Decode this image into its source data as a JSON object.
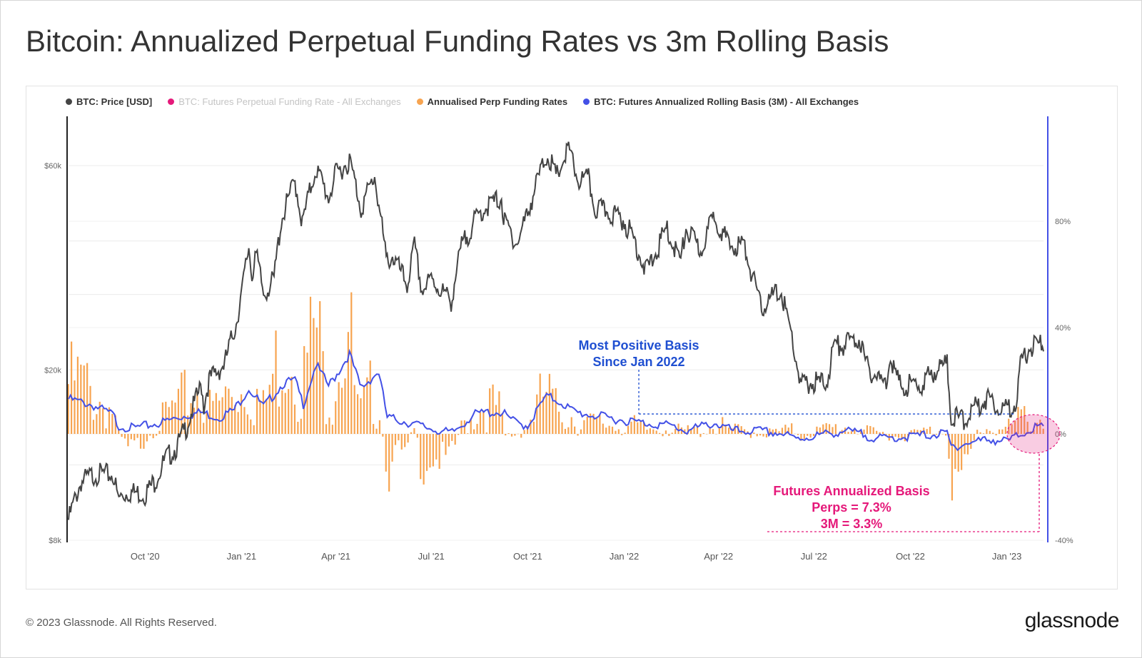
{
  "header": {
    "title": "Bitcoin: Annualized Perpetual Funding Rates vs 3m Rolling Basis"
  },
  "legend": [
    {
      "label": "BTC: Price [USD]",
      "color": "#444444",
      "muted": false
    },
    {
      "label": "BTC: Futures Perpetual Funding Rate - All Exchanges",
      "color": "#e5197a",
      "muted": true
    },
    {
      "label": "Annualised Perp Funding Rates",
      "color": "#f7a450",
      "muted": false
    },
    {
      "label": "BTC: Futures Annualized Rolling Basis (3M) - All Exchanges",
      "color": "#4350e6",
      "muted": false
    }
  ],
  "footer": {
    "copyright": "© 2023 Glassnode. All Rights Reserved.",
    "logo": "glassnode"
  },
  "chart_data": {
    "type": "line",
    "x_ticks": [
      "Oct '20",
      "Jan '21",
      "Apr '21",
      "Jul '21",
      "Oct '21",
      "Jan '22",
      "Apr '22",
      "Jul '22",
      "Oct '22",
      "Jan '23"
    ],
    "y_left": {
      "scale": "log",
      "ticks": [
        "$8k",
        "$20k",
        "$60k"
      ],
      "tick_values": [
        8000,
        20000,
        60000
      ]
    },
    "y_right": {
      "ticks": [
        "80%",
        "40%",
        "0%",
        "-40%"
      ],
      "tick_values": [
        80,
        40,
        0,
        -40
      ],
      "range": [
        -40,
        115
      ]
    },
    "colors": {
      "price": "#444444",
      "funding": "#f7a450",
      "basis": "#4350e6",
      "annot_blue": "#1f4fd1",
      "annot_pink": "#e5197a"
    },
    "price": [
      [
        "2020-07-20",
        9200
      ],
      [
        "2020-08-01",
        11300
      ],
      [
        "2020-08-15",
        11800
      ],
      [
        "2020-09-01",
        11700
      ],
      [
        "2020-09-05",
        10300
      ],
      [
        "2020-09-15",
        10700
      ],
      [
        "2020-10-01",
        10600
      ],
      [
        "2020-10-10",
        11300
      ],
      [
        "2020-10-21",
        12800
      ],
      [
        "2020-11-01",
        13700
      ],
      [
        "2020-11-10",
        15300
      ],
      [
        "2020-11-24",
        19000
      ],
      [
        "2020-11-26",
        17000
      ],
      [
        "2020-12-01",
        19500
      ],
      [
        "2020-12-16",
        21300
      ],
      [
        "2020-12-27",
        26500
      ],
      [
        "2021-01-02",
        32000
      ],
      [
        "2021-01-08",
        40000
      ],
      [
        "2021-01-11",
        34000
      ],
      [
        "2021-01-14",
        39000
      ],
      [
        "2021-01-22",
        31000
      ],
      [
        "2021-02-01",
        33500
      ],
      [
        "2021-02-08",
        46000
      ],
      [
        "2021-02-21",
        57000
      ],
      [
        "2021-02-28",
        45000
      ],
      [
        "2021-03-13",
        61000
      ],
      [
        "2021-03-25",
        52000
      ],
      [
        "2021-04-01",
        59000
      ],
      [
        "2021-04-14",
        63500
      ],
      [
        "2021-04-25",
        49000
      ],
      [
        "2021-05-08",
        58500
      ],
      [
        "2021-05-12",
        50000
      ],
      [
        "2021-05-19",
        37000
      ],
      [
        "2021-05-25",
        38000
      ],
      [
        "2021-06-08",
        32500
      ],
      [
        "2021-06-15",
        40000
      ],
      [
        "2021-06-22",
        31500
      ],
      [
        "2021-07-01",
        33500
      ],
      [
        "2021-07-20",
        29800
      ],
      [
        "2021-07-30",
        40000
      ],
      [
        "2021-08-14",
        47000
      ],
      [
        "2021-08-22",
        49500
      ],
      [
        "2021-09-06",
        52000
      ],
      [
        "2021-09-08",
        46000
      ],
      [
        "2021-09-21",
        40500
      ],
      [
        "2021-10-01",
        48000
      ],
      [
        "2021-10-15",
        61500
      ],
      [
        "2021-10-20",
        66000
      ],
      [
        "2021-10-28",
        58000
      ],
      [
        "2021-11-09",
        67500
      ],
      [
        "2021-11-18",
        57000
      ],
      [
        "2021-11-28",
        57500
      ],
      [
        "2021-12-04",
        49000
      ],
      [
        "2021-12-15",
        48500
      ],
      [
        "2021-12-31",
        46300
      ],
      [
        "2022-01-10",
        41800
      ],
      [
        "2022-01-22",
        35000
      ],
      [
        "2022-01-31",
        38500
      ],
      [
        "2022-02-10",
        44000
      ],
      [
        "2022-02-24",
        37000
      ],
      [
        "2022-03-01",
        44000
      ],
      [
        "2022-03-15",
        39000
      ],
      [
        "2022-03-28",
        47500
      ],
      [
        "2022-04-11",
        40000
      ],
      [
        "2022-04-25",
        40500
      ],
      [
        "2022-05-09",
        30000
      ],
      [
        "2022-05-12",
        28800
      ],
      [
        "2022-05-30",
        31700
      ],
      [
        "2022-06-13",
        22500
      ],
      [
        "2022-06-18",
        19000
      ],
      [
        "2022-07-01",
        19300
      ],
      [
        "2022-07-13",
        19200
      ],
      [
        "2022-07-20",
        23400
      ],
      [
        "2022-07-30",
        23700
      ],
      [
        "2022-08-14",
        24400
      ],
      [
        "2022-08-20",
        21000
      ],
      [
        "2022-09-07",
        19000
      ],
      [
        "2022-09-12",
        22400
      ],
      [
        "2022-09-20",
        19000
      ],
      [
        "2022-10-11",
        19000
      ],
      [
        "2022-10-26",
        20800
      ],
      [
        "2022-11-05",
        21300
      ],
      [
        "2022-11-09",
        16000
      ],
      [
        "2022-11-21",
        15800
      ],
      [
        "2022-12-05",
        17100
      ],
      [
        "2022-12-14",
        17800
      ],
      [
        "2022-12-30",
        16600
      ],
      [
        "2023-01-10",
        17400
      ],
      [
        "2023-01-14",
        20900
      ],
      [
        "2023-01-21",
        23000
      ],
      [
        "2023-02-01",
        23700
      ],
      [
        "2023-02-05",
        23500
      ]
    ],
    "basis": [
      [
        "2020-07-20",
        14
      ],
      [
        "2020-08-10",
        12
      ],
      [
        "2020-09-01",
        8
      ],
      [
        "2020-09-05",
        4
      ],
      [
        "2020-09-20",
        3
      ],
      [
        "2020-10-15",
        5
      ],
      [
        "2020-11-10",
        8
      ],
      [
        "2020-11-24",
        9
      ],
      [
        "2020-12-10",
        7
      ],
      [
        "2020-12-25",
        10
      ],
      [
        "2021-01-08",
        18
      ],
      [
        "2021-01-22",
        11
      ],
      [
        "2021-02-10",
        20
      ],
      [
        "2021-02-21",
        21
      ],
      [
        "2021-03-01",
        12
      ],
      [
        "2021-03-13",
        27
      ],
      [
        "2021-03-25",
        19
      ],
      [
        "2021-04-03",
        24
      ],
      [
        "2021-04-14",
        31
      ],
      [
        "2021-04-25",
        18
      ],
      [
        "2021-05-08",
        23
      ],
      [
        "2021-05-12",
        24
      ],
      [
        "2021-05-20",
        7
      ],
      [
        "2021-06-01",
        6
      ],
      [
        "2021-06-20",
        4
      ],
      [
        "2021-07-20",
        1
      ],
      [
        "2021-08-10",
        8
      ],
      [
        "2021-08-22",
        9
      ],
      [
        "2021-09-06",
        9
      ],
      [
        "2021-09-20",
        5
      ],
      [
        "2021-10-01",
        4
      ],
      [
        "2021-10-15",
        13
      ],
      [
        "2021-10-20",
        15
      ],
      [
        "2021-11-01",
        13
      ],
      [
        "2021-11-15",
        9
      ],
      [
        "2021-12-01",
        8
      ],
      [
        "2021-12-15",
        7
      ],
      [
        "2022-01-01",
        6
      ],
      [
        "2022-01-20",
        5
      ],
      [
        "2022-02-15",
        4
      ],
      [
        "2022-03-01",
        2
      ],
      [
        "2022-03-28",
        5
      ],
      [
        "2022-04-15",
        2
      ],
      [
        "2022-05-09",
        2
      ],
      [
        "2022-06-01",
        1
      ],
      [
        "2022-06-13",
        -1
      ],
      [
        "2022-07-01",
        0
      ],
      [
        "2022-07-30",
        2
      ],
      [
        "2022-08-14",
        1
      ],
      [
        "2022-09-01",
        -1
      ],
      [
        "2022-10-01",
        0
      ],
      [
        "2022-11-05",
        1
      ],
      [
        "2022-11-09",
        -4
      ],
      [
        "2022-11-20",
        -3
      ],
      [
        "2022-12-15",
        -1
      ],
      [
        "2023-01-01",
        -2
      ],
      [
        "2023-01-15",
        1
      ],
      [
        "2023-01-25",
        3
      ],
      [
        "2023-02-05",
        3.3
      ]
    ],
    "funding": [
      [
        "2020-07-20",
        25
      ],
      [
        "2020-08-01",
        26
      ],
      [
        "2020-08-15",
        18
      ],
      [
        "2020-09-01",
        12
      ],
      [
        "2020-09-05",
        0
      ],
      [
        "2020-09-15",
        -5
      ],
      [
        "2020-10-01",
        -2
      ],
      [
        "2020-10-10",
        3
      ],
      [
        "2020-10-21",
        9
      ],
      [
        "2020-11-01",
        14
      ],
      [
        "2020-11-10",
        18
      ],
      [
        "2020-11-24",
        24
      ],
      [
        "2020-12-01",
        12
      ],
      [
        "2020-12-10",
        14
      ],
      [
        "2020-12-27",
        25
      ],
      [
        "2021-01-02",
        22
      ],
      [
        "2021-01-08",
        33
      ],
      [
        "2021-01-11",
        14
      ],
      [
        "2021-01-14",
        22
      ],
      [
        "2021-01-22",
        12
      ],
      [
        "2021-02-01",
        30
      ],
      [
        "2021-02-10",
        48
      ],
      [
        "2021-02-21",
        50
      ],
      [
        "2021-02-28",
        24
      ],
      [
        "2021-03-13",
        55
      ],
      [
        "2021-03-20",
        30
      ],
      [
        "2021-03-28",
        22
      ],
      [
        "2021-04-05",
        50
      ],
      [
        "2021-04-14",
        55
      ],
      [
        "2021-04-20",
        15
      ],
      [
        "2021-04-25",
        10
      ],
      [
        "2021-05-08",
        24
      ],
      [
        "2021-05-12",
        18
      ],
      [
        "2021-05-20",
        -15
      ],
      [
        "2021-05-25",
        -5
      ],
      [
        "2021-06-08",
        -7
      ],
      [
        "2021-06-15",
        2
      ],
      [
        "2021-06-22",
        -10
      ],
      [
        "2021-07-01",
        -7
      ],
      [
        "2021-07-20",
        -8
      ],
      [
        "2021-07-30",
        3
      ],
      [
        "2021-08-14",
        12
      ],
      [
        "2021-08-22",
        16
      ],
      [
        "2021-09-06",
        11
      ],
      [
        "2021-09-08",
        -1
      ],
      [
        "2021-09-21",
        0
      ],
      [
        "2021-10-01",
        5
      ],
      [
        "2021-10-15",
        18
      ],
      [
        "2021-10-20",
        20
      ],
      [
        "2021-10-28",
        12
      ],
      [
        "2021-11-09",
        11
      ],
      [
        "2021-11-18",
        6
      ],
      [
        "2021-12-04",
        5
      ],
      [
        "2021-12-20",
        5
      ],
      [
        "2022-01-10",
        4
      ],
      [
        "2022-01-22",
        2
      ],
      [
        "2022-02-10",
        4
      ],
      [
        "2022-02-24",
        1
      ],
      [
        "2022-03-15",
        2
      ],
      [
        "2022-03-28",
        5
      ],
      [
        "2022-04-11",
        2
      ],
      [
        "2022-05-09",
        1
      ],
      [
        "2022-05-12",
        0
      ],
      [
        "2022-06-13",
        2
      ],
      [
        "2022-06-18",
        -1
      ],
      [
        "2022-07-01",
        1
      ],
      [
        "2022-07-20",
        3
      ],
      [
        "2022-08-14",
        4
      ],
      [
        "2022-08-20",
        1
      ],
      [
        "2022-09-07",
        0
      ],
      [
        "2022-09-20",
        -1
      ],
      [
        "2022-10-11",
        1
      ],
      [
        "2022-10-26",
        2
      ],
      [
        "2022-11-05",
        3
      ],
      [
        "2022-11-09",
        -13
      ],
      [
        "2022-11-21",
        -14
      ],
      [
        "2022-12-05",
        2
      ],
      [
        "2022-12-14",
        3
      ],
      [
        "2022-12-30",
        2
      ],
      [
        "2023-01-10",
        5
      ],
      [
        "2023-01-14",
        8
      ],
      [
        "2023-01-21",
        9
      ],
      [
        "2023-02-05",
        7.3
      ]
    ],
    "annotations": {
      "blue": {
        "lines": [
          "Most Positive Basis",
          "Since Jan 2022"
        ],
        "date": "2022-01-15",
        "value": 7.5
      },
      "pink": {
        "lines": [
          "Futures Annualized Basis",
          "Perps = 7.3%",
          "3M = 3.3%"
        ],
        "date": "2023-01-20"
      }
    }
  }
}
